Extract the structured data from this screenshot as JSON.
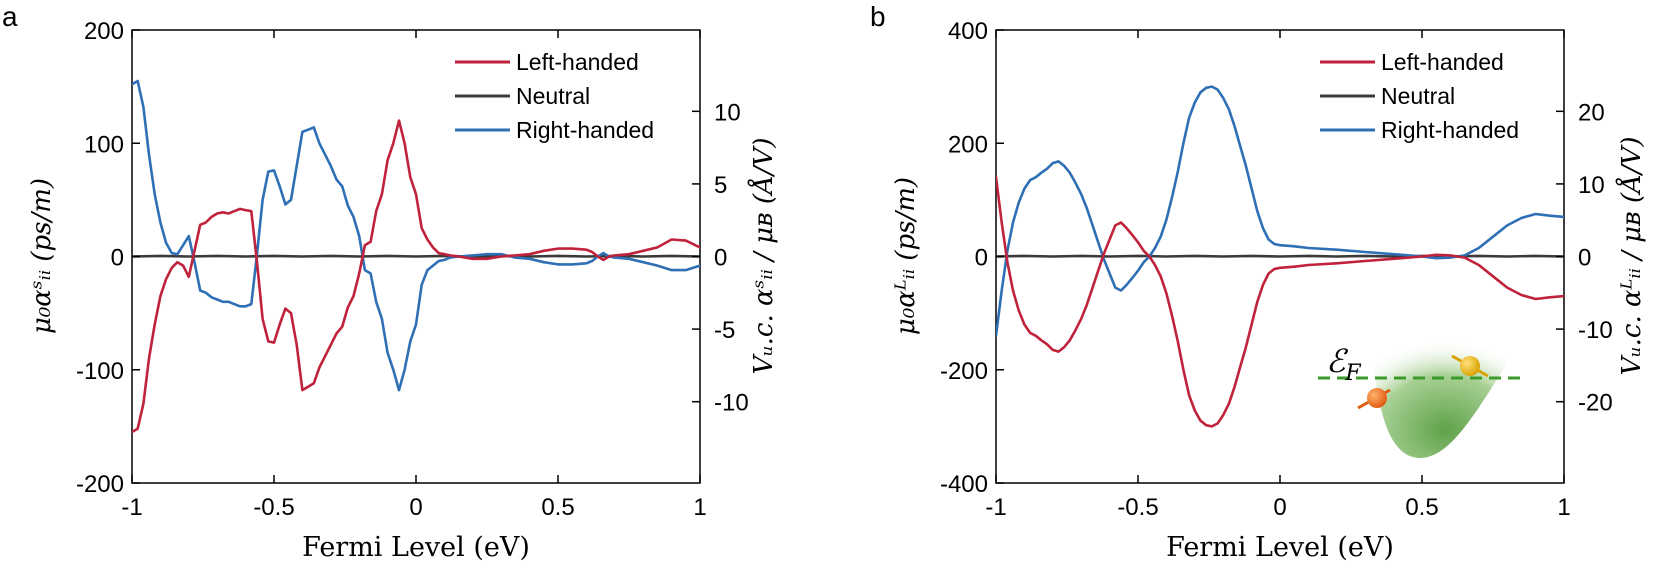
{
  "figure": {
    "panels": [
      "a",
      "b"
    ],
    "inset_label": "ℰ",
    "inset_label_sub": "F"
  },
  "legend": {
    "left": "Left-handed",
    "neutral": "Neutral",
    "right": "Right-handed"
  },
  "colors": {
    "left": "#c0223b",
    "neutral": "#3a3a3a",
    "right": "#2f6fb5",
    "axis": "#000000"
  },
  "chart_data": [
    {
      "type": "line",
      "panel": "a",
      "xlabel": "Fermi Level (eV)",
      "ylabel": "μ₀αˢᵢᵢ (ps/m)",
      "ylabel_right": "Vᵤ.c. αˢᵢᵢ / μʙ (Å/V)",
      "xlim": [
        -1,
        1
      ],
      "ylim": [
        -200,
        200
      ],
      "xticks": [
        -1,
        -0.5,
        0,
        0.5,
        1
      ],
      "xtick_labels": [
        "-1",
        "-0.5",
        "0",
        "0.5",
        "1"
      ],
      "yticks": [
        -200,
        -100,
        0,
        100,
        200
      ],
      "ytick_labels": [
        "-200",
        "-100",
        "0",
        "100",
        "200"
      ],
      "yticks_right": [
        -10,
        -5,
        0,
        5,
        10
      ],
      "ytick_labels_right": [
        "-10",
        "-5",
        "0",
        "5",
        "10"
      ],
      "ylim_right": [
        -15.6,
        15.6
      ],
      "series": [
        {
          "name": "Left-handed",
          "x": [
            -1.0,
            -0.98,
            -0.96,
            -0.94,
            -0.92,
            -0.9,
            -0.88,
            -0.86,
            -0.84,
            -0.82,
            -0.8,
            -0.78,
            -0.76,
            -0.74,
            -0.72,
            -0.7,
            -0.68,
            -0.66,
            -0.64,
            -0.62,
            -0.6,
            -0.58,
            -0.56,
            -0.54,
            -0.52,
            -0.5,
            -0.48,
            -0.46,
            -0.44,
            -0.42,
            -0.4,
            -0.38,
            -0.36,
            -0.34,
            -0.32,
            -0.3,
            -0.28,
            -0.26,
            -0.24,
            -0.22,
            -0.2,
            -0.18,
            -0.16,
            -0.14,
            -0.12,
            -0.1,
            -0.08,
            -0.06,
            -0.04,
            -0.02,
            0.0,
            0.02,
            0.04,
            0.06,
            0.08,
            0.1,
            0.12,
            0.15,
            0.2,
            0.25,
            0.3,
            0.35,
            0.4,
            0.45,
            0.5,
            0.55,
            0.6,
            0.62,
            0.64,
            0.66,
            0.68,
            0.7,
            0.75,
            0.8,
            0.85,
            0.9,
            0.95,
            1.0
          ],
          "y": [
            -155,
            -152,
            -130,
            -90,
            -60,
            -35,
            -20,
            -10,
            -5,
            -8,
            -18,
            5,
            28,
            30,
            35,
            38,
            39,
            38,
            40,
            42,
            41,
            40,
            -5,
            -55,
            -75,
            -76,
            -60,
            -46,
            -50,
            -78,
            -118,
            -115,
            -112,
            -98,
            -88,
            -78,
            -68,
            -62,
            -45,
            -35,
            -15,
            10,
            13,
            40,
            55,
            85,
            100,
            120,
            100,
            70,
            55,
            25,
            15,
            8,
            3,
            2,
            1,
            0,
            -2,
            -2,
            0,
            1,
            2,
            5,
            7,
            7,
            6,
            4,
            0,
            -3,
            0,
            1,
            2,
            5,
            8,
            15,
            14,
            8
          ]
        },
        {
          "name": "Neutral",
          "x": [
            -1.0,
            -0.9,
            -0.8,
            -0.7,
            -0.6,
            -0.5,
            -0.4,
            -0.3,
            -0.2,
            -0.1,
            0.0,
            0.1,
            0.2,
            0.3,
            0.4,
            0.5,
            0.6,
            0.7,
            0.8,
            0.9,
            1.0
          ],
          "y": [
            0,
            0.5,
            0,
            0.5,
            0,
            0.5,
            0,
            0.5,
            0,
            0.5,
            0,
            0.5,
            0,
            0.5,
            0,
            0.5,
            0,
            0.5,
            0,
            0.5,
            0
          ]
        },
        {
          "name": "Right-handed",
          "x": [
            -1.0,
            -0.98,
            -0.96,
            -0.94,
            -0.92,
            -0.9,
            -0.88,
            -0.86,
            -0.84,
            -0.82,
            -0.8,
            -0.78,
            -0.76,
            -0.74,
            -0.72,
            -0.7,
            -0.68,
            -0.66,
            -0.64,
            -0.62,
            -0.6,
            -0.58,
            -0.56,
            -0.54,
            -0.52,
            -0.5,
            -0.48,
            -0.46,
            -0.44,
            -0.42,
            -0.4,
            -0.38,
            -0.36,
            -0.34,
            -0.32,
            -0.3,
            -0.28,
            -0.26,
            -0.24,
            -0.22,
            -0.2,
            -0.18,
            -0.16,
            -0.14,
            -0.12,
            -0.1,
            -0.08,
            -0.06,
            -0.04,
            -0.02,
            0.0,
            0.02,
            0.04,
            0.06,
            0.08,
            0.1,
            0.12,
            0.15,
            0.2,
            0.25,
            0.3,
            0.35,
            0.4,
            0.45,
            0.5,
            0.55,
            0.6,
            0.62,
            0.64,
            0.66,
            0.68,
            0.7,
            0.75,
            0.8,
            0.85,
            0.9,
            0.95,
            1.0
          ],
          "y": [
            152,
            155,
            132,
            90,
            55,
            30,
            12,
            3,
            2,
            10,
            18,
            -5,
            -30,
            -32,
            -36,
            -38,
            -40,
            -40,
            -42,
            -44,
            -44,
            -42,
            2,
            50,
            75,
            76,
            62,
            46,
            50,
            80,
            110,
            112,
            114,
            100,
            90,
            80,
            68,
            62,
            45,
            35,
            18,
            -12,
            -15,
            -40,
            -55,
            -85,
            -100,
            -118,
            -100,
            -75,
            -60,
            -25,
            -12,
            -8,
            -4,
            -3,
            -1,
            0,
            1,
            2,
            2,
            -1,
            -2,
            -5,
            -7,
            -7,
            -6,
            -4,
            0,
            3,
            0,
            -1,
            -2,
            -5,
            -8,
            -12,
            -12,
            -8
          ]
        }
      ]
    },
    {
      "type": "line",
      "panel": "b",
      "xlabel": "Fermi Level (eV)",
      "ylabel": "μ₀αᴸᵢᵢ (ps/m)",
      "ylabel_right": "Vᵤ.c. αᴸᵢᵢ / μʙ (Å/V)",
      "xlim": [
        -1,
        1
      ],
      "ylim": [
        -400,
        400
      ],
      "xticks": [
        -1,
        -0.5,
        0,
        0.5,
        1
      ],
      "xtick_labels": [
        "-1",
        "-0.5",
        "0",
        "0.5",
        "1"
      ],
      "yticks": [
        -400,
        -200,
        0,
        200,
        400
      ],
      "ytick_labels": [
        "-400",
        "-200",
        "0",
        "200",
        "400"
      ],
      "yticks_right": [
        -20,
        -10,
        0,
        10,
        20
      ],
      "ytick_labels_right": [
        "-20",
        "-10",
        "0",
        "10",
        "20"
      ],
      "ylim_right": [
        -31.2,
        31.2
      ],
      "series": [
        {
          "name": "Left-handed",
          "x": [
            -1.0,
            -0.98,
            -0.96,
            -0.94,
            -0.92,
            -0.9,
            -0.88,
            -0.86,
            -0.84,
            -0.82,
            -0.8,
            -0.78,
            -0.76,
            -0.74,
            -0.72,
            -0.7,
            -0.68,
            -0.66,
            -0.64,
            -0.62,
            -0.6,
            -0.58,
            -0.56,
            -0.54,
            -0.52,
            -0.5,
            -0.48,
            -0.46,
            -0.44,
            -0.42,
            -0.4,
            -0.38,
            -0.36,
            -0.34,
            -0.32,
            -0.3,
            -0.28,
            -0.26,
            -0.24,
            -0.22,
            -0.2,
            -0.18,
            -0.16,
            -0.14,
            -0.12,
            -0.1,
            -0.08,
            -0.06,
            -0.04,
            -0.02,
            0.0,
            0.05,
            0.1,
            0.2,
            0.3,
            0.4,
            0.5,
            0.55,
            0.6,
            0.65,
            0.7,
            0.75,
            0.8,
            0.85,
            0.9,
            0.95,
            1.0
          ],
          "y": [
            140,
            60,
            -10,
            -60,
            -95,
            -120,
            -135,
            -140,
            -148,
            -155,
            -165,
            -168,
            -160,
            -148,
            -130,
            -110,
            -85,
            -55,
            -25,
            5,
            30,
            55,
            60,
            50,
            38,
            25,
            10,
            0,
            -15,
            -35,
            -65,
            -105,
            -150,
            -200,
            -245,
            -272,
            -290,
            -298,
            -300,
            -295,
            -280,
            -260,
            -230,
            -195,
            -160,
            -120,
            -80,
            -50,
            -30,
            -22,
            -20,
            -18,
            -15,
            -12,
            -8,
            -4,
            0,
            3,
            2,
            -2,
            -15,
            -35,
            -55,
            -68,
            -75,
            -72,
            -70
          ]
        },
        {
          "name": "Neutral",
          "x": [
            -1.0,
            -0.9,
            -0.8,
            -0.7,
            -0.6,
            -0.5,
            -0.4,
            -0.3,
            -0.2,
            -0.1,
            0.0,
            0.1,
            0.2,
            0.3,
            0.4,
            0.5,
            0.6,
            0.7,
            0.8,
            0.9,
            1.0
          ],
          "y": [
            0,
            1,
            0,
            1,
            0,
            1,
            0,
            1,
            0,
            1,
            0,
            1,
            0,
            1,
            0,
            1,
            0,
            1,
            0,
            1,
            0
          ]
        },
        {
          "name": "Right-handed",
          "x": [
            -1.0,
            -0.98,
            -0.96,
            -0.94,
            -0.92,
            -0.9,
            -0.88,
            -0.86,
            -0.84,
            -0.82,
            -0.8,
            -0.78,
            -0.76,
            -0.74,
            -0.72,
            -0.7,
            -0.68,
            -0.66,
            -0.64,
            -0.62,
            -0.6,
            -0.58,
            -0.56,
            -0.54,
            -0.52,
            -0.5,
            -0.48,
            -0.46,
            -0.44,
            -0.42,
            -0.4,
            -0.38,
            -0.36,
            -0.34,
            -0.32,
            -0.3,
            -0.28,
            -0.26,
            -0.24,
            -0.22,
            -0.2,
            -0.18,
            -0.16,
            -0.14,
            -0.12,
            -0.1,
            -0.08,
            -0.06,
            -0.04,
            -0.02,
            0.0,
            0.05,
            0.1,
            0.2,
            0.3,
            0.4,
            0.5,
            0.55,
            0.6,
            0.65,
            0.7,
            0.75,
            0.8,
            0.85,
            0.9,
            0.95,
            1.0
          ],
          "y": [
            -140,
            -60,
            10,
            60,
            95,
            120,
            135,
            140,
            148,
            155,
            165,
            168,
            160,
            148,
            130,
            110,
            85,
            55,
            25,
            -5,
            -30,
            -55,
            -60,
            -50,
            -38,
            -25,
            -10,
            0,
            15,
            35,
            65,
            105,
            150,
            200,
            245,
            272,
            290,
            298,
            300,
            295,
            280,
            260,
            230,
            195,
            160,
            120,
            80,
            50,
            30,
            22,
            20,
            18,
            15,
            12,
            8,
            4,
            0,
            -3,
            -2,
            2,
            15,
            35,
            55,
            68,
            75,
            72,
            70
          ]
        }
      ]
    }
  ]
}
